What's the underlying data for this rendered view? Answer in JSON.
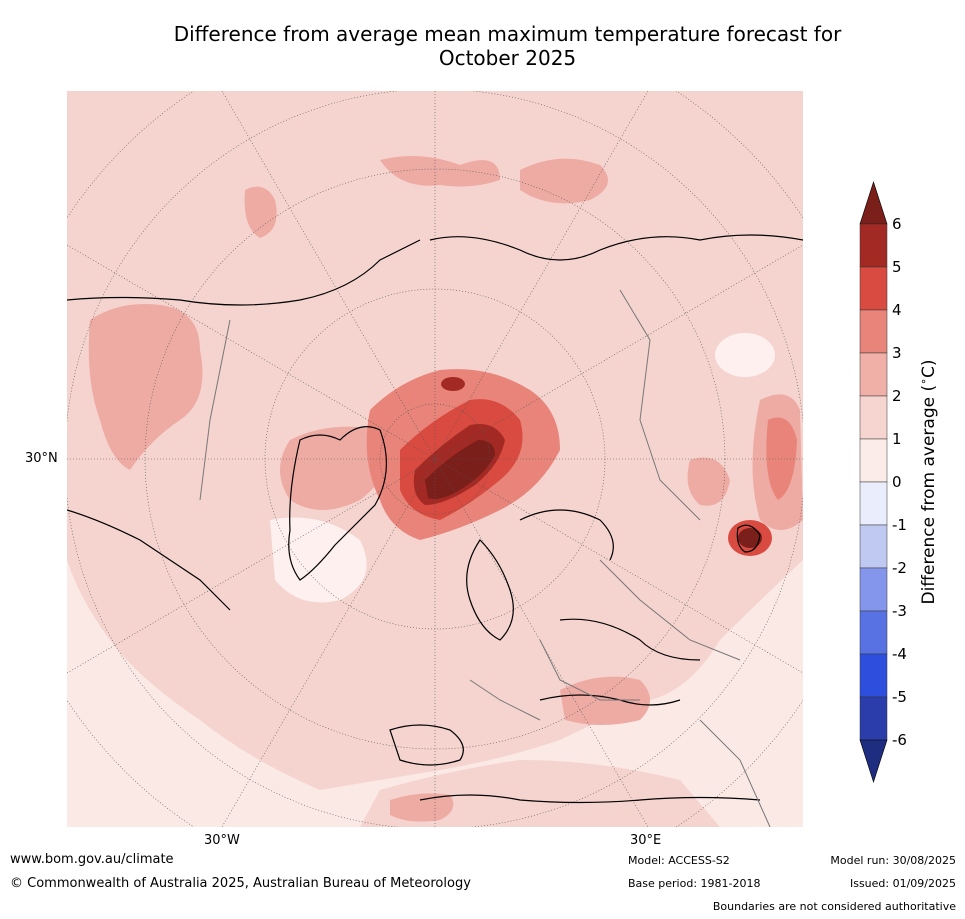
{
  "title_line1": "Difference from average mean maximum temperature forecast for",
  "title_line2": "October 2025",
  "map": {
    "projection": "north-polar-stereographic",
    "lat_label": "30°N",
    "lon_labels": [
      "30°W",
      "30°E"
    ],
    "hotspot_region": "Greenland Sea / Svalbard",
    "secondary_hotspot_region": "Caspian Sea"
  },
  "colorbar": {
    "title": "Difference from average (°C)",
    "title_main": "Difference from average (",
    "title_unit": "C)",
    "ticks": [
      "6",
      "5",
      "4",
      "3",
      "2",
      "1",
      "0",
      "-1",
      "-2",
      "-3",
      "-4",
      "-5",
      "-6"
    ],
    "colors": [
      "#a32a24",
      "#d94b40",
      "#e8847a",
      "#f0b0a8",
      "#f6d5d0",
      "#fbece9",
      "#eaedfb",
      "#c0c9f2",
      "#8496ec",
      "#5872e3",
      "#2e4fdd",
      "#2b3cab"
    ],
    "over_color": "#7b1f1a",
    "under_color": "#1f2d80"
  },
  "footer": {
    "website": "www.bom.gov.au/climate",
    "copyright": "© Commonwealth of Australia 2025, Australian Bureau of Meteorology",
    "model": "Model: ACCESS-S2",
    "base_period": "Base period: 1981-2018",
    "model_run": "Model run: 30/08/2025",
    "issued": "Issued: 01/09/2025",
    "disclaimer": "Boundaries are not considered authoritative"
  }
}
